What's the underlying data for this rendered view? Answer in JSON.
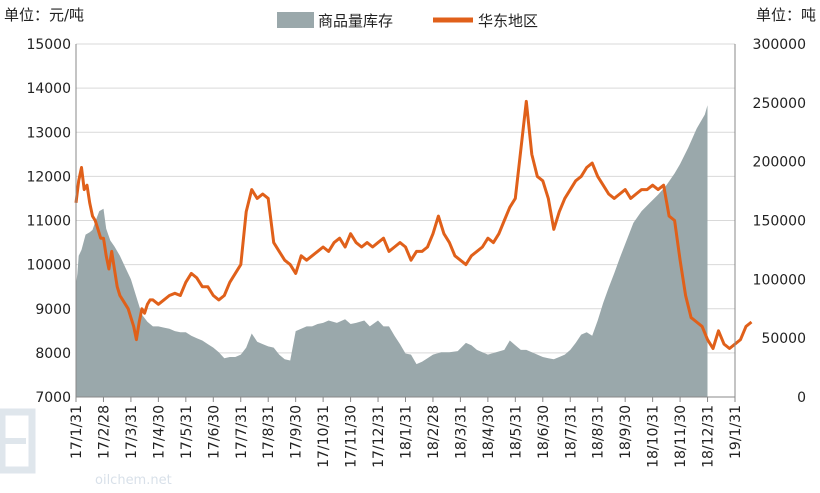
{
  "chart_data": {
    "type": "area+line",
    "left_unit": "单位：元/吨",
    "right_unit": "单位：吨",
    "legend": [
      {
        "name": "商品量库存",
        "color": "#9aa8ab",
        "kind": "area"
      },
      {
        "name": "华东地区",
        "color": "#e0601a",
        "kind": "line"
      }
    ],
    "y_left": {
      "min": 7000,
      "max": 15000,
      "ticks": [
        7000,
        8000,
        9000,
        10000,
        11000,
        12000,
        13000,
        14000,
        15000
      ]
    },
    "y_right": {
      "min": 0,
      "max": 300000,
      "ticks": [
        0,
        50000,
        100000,
        150000,
        200000,
        250000,
        300000
      ]
    },
    "x_ticks": [
      "17/1/31",
      "17/2/28",
      "17/3/31",
      "17/4/30",
      "17/5/31",
      "17/6/30",
      "17/7/31",
      "17/8/31",
      "17/9/30",
      "17/10/31",
      "17/11/30",
      "17/12/31",
      "18/1/31",
      "18/2/28",
      "18/3/31",
      "18/4/30",
      "18/5/31",
      "18/6/30",
      "18/7/31",
      "18/8/31",
      "18/9/30",
      "18/10/31",
      "18/11/30",
      "18/12/31",
      "19/1/31"
    ],
    "series": [
      {
        "name": "商品量库存",
        "axis": "right",
        "points": [
          [
            0,
            95000
          ],
          [
            0.05,
            105000
          ],
          [
            0.1,
            120000
          ],
          [
            0.2,
            125000
          ],
          [
            0.35,
            138000
          ],
          [
            0.5,
            140000
          ],
          [
            0.6,
            142000
          ],
          [
            0.75,
            152000
          ],
          [
            0.85,
            158000
          ],
          [
            1.0,
            160000
          ],
          [
            1.1,
            143000
          ],
          [
            1.25,
            133000
          ],
          [
            1.4,
            128000
          ],
          [
            1.6,
            120000
          ],
          [
            1.8,
            110000
          ],
          [
            2.0,
            100000
          ],
          [
            2.2,
            85000
          ],
          [
            2.4,
            70000
          ],
          [
            2.6,
            64000
          ],
          [
            2.8,
            60000
          ],
          [
            3.0,
            60000
          ],
          [
            3.2,
            59000
          ],
          [
            3.4,
            58000
          ],
          [
            3.6,
            56000
          ],
          [
            3.8,
            55000
          ],
          [
            4.0,
            55000
          ],
          [
            4.2,
            52000
          ],
          [
            4.4,
            50000
          ],
          [
            4.6,
            48000
          ],
          [
            4.8,
            45000
          ],
          [
            5.0,
            42000
          ],
          [
            5.2,
            38000
          ],
          [
            5.4,
            33000
          ],
          [
            5.6,
            34000
          ],
          [
            5.8,
            34000
          ],
          [
            6.0,
            36000
          ],
          [
            6.2,
            42000
          ],
          [
            6.4,
            54000
          ],
          [
            6.6,
            47000
          ],
          [
            6.8,
            45000
          ],
          [
            7.0,
            43000
          ],
          [
            7.2,
            42000
          ],
          [
            7.4,
            36000
          ],
          [
            7.6,
            32000
          ],
          [
            7.8,
            31000
          ],
          [
            8.0,
            56000
          ],
          [
            8.2,
            58000
          ],
          [
            8.4,
            60000
          ],
          [
            8.6,
            60000
          ],
          [
            8.8,
            62000
          ],
          [
            9.0,
            63000
          ],
          [
            9.2,
            65000
          ],
          [
            9.5,
            63000
          ],
          [
            9.8,
            66000
          ],
          [
            10.0,
            62000
          ],
          [
            10.2,
            63000
          ],
          [
            10.5,
            65000
          ],
          [
            10.7,
            60000
          ],
          [
            11.0,
            65000
          ],
          [
            11.2,
            60000
          ],
          [
            11.4,
            60000
          ],
          [
            11.6,
            52000
          ],
          [
            11.8,
            45000
          ],
          [
            12.0,
            37000
          ],
          [
            12.2,
            36000
          ],
          [
            12.4,
            28000
          ],
          [
            12.6,
            30000
          ],
          [
            12.8,
            33000
          ],
          [
            13.0,
            36000
          ],
          [
            13.3,
            38000
          ],
          [
            13.6,
            38000
          ],
          [
            13.9,
            39000
          ],
          [
            14.2,
            46000
          ],
          [
            14.4,
            44000
          ],
          [
            14.6,
            40000
          ],
          [
            14.8,
            38000
          ],
          [
            15.0,
            36000
          ],
          [
            15.3,
            38000
          ],
          [
            15.6,
            40000
          ],
          [
            15.8,
            48000
          ],
          [
            16.0,
            44000
          ],
          [
            16.2,
            40000
          ],
          [
            16.4,
            40000
          ],
          [
            16.6,
            38000
          ],
          [
            16.8,
            36000
          ],
          [
            17.0,
            34000
          ],
          [
            17.2,
            33000
          ],
          [
            17.4,
            32000
          ],
          [
            17.6,
            34000
          ],
          [
            17.8,
            36000
          ],
          [
            18.0,
            40000
          ],
          [
            18.2,
            46000
          ],
          [
            18.4,
            53000
          ],
          [
            18.6,
            55000
          ],
          [
            18.8,
            52000
          ],
          [
            19.0,
            65000
          ],
          [
            19.2,
            80000
          ],
          [
            19.4,
            93000
          ],
          [
            19.6,
            105000
          ],
          [
            19.8,
            118000
          ],
          [
            20.0,
            130000
          ],
          [
            20.3,
            148000
          ],
          [
            20.6,
            158000
          ],
          [
            20.9,
            165000
          ],
          [
            21.2,
            172000
          ],
          [
            21.5,
            180000
          ],
          [
            21.8,
            190000
          ],
          [
            22.0,
            198000
          ],
          [
            22.3,
            212000
          ],
          [
            22.6,
            228000
          ],
          [
            22.9,
            240000
          ],
          [
            23.0,
            248000
          ]
        ]
      },
      {
        "name": "华东地区",
        "axis": "left",
        "points": [
          [
            0,
            11400
          ],
          [
            0.1,
            11900
          ],
          [
            0.2,
            12200
          ],
          [
            0.3,
            11700
          ],
          [
            0.4,
            11800
          ],
          [
            0.5,
            11400
          ],
          [
            0.6,
            11100
          ],
          [
            0.7,
            11000
          ],
          [
            0.8,
            10800
          ],
          [
            0.9,
            10600
          ],
          [
            1.0,
            10600
          ],
          [
            1.1,
            10200
          ],
          [
            1.2,
            9900
          ],
          [
            1.3,
            10300
          ],
          [
            1.4,
            9900
          ],
          [
            1.5,
            9500
          ],
          [
            1.6,
            9300
          ],
          [
            1.7,
            9200
          ],
          [
            1.8,
            9100
          ],
          [
            1.9,
            9000
          ],
          [
            2.0,
            8800
          ],
          [
            2.1,
            8600
          ],
          [
            2.2,
            8300
          ],
          [
            2.3,
            8700
          ],
          [
            2.4,
            9000
          ],
          [
            2.5,
            8900
          ],
          [
            2.6,
            9100
          ],
          [
            2.7,
            9200
          ],
          [
            2.8,
            9200
          ],
          [
            3.0,
            9100
          ],
          [
            3.2,
            9200
          ],
          [
            3.4,
            9300
          ],
          [
            3.6,
            9350
          ],
          [
            3.8,
            9300
          ],
          [
            4.0,
            9600
          ],
          [
            4.2,
            9800
          ],
          [
            4.4,
            9700
          ],
          [
            4.6,
            9500
          ],
          [
            4.8,
            9500
          ],
          [
            5.0,
            9300
          ],
          [
            5.2,
            9200
          ],
          [
            5.4,
            9300
          ],
          [
            5.6,
            9600
          ],
          [
            5.8,
            9800
          ],
          [
            6.0,
            10000
          ],
          [
            6.2,
            11200
          ],
          [
            6.4,
            11700
          ],
          [
            6.6,
            11500
          ],
          [
            6.8,
            11600
          ],
          [
            7.0,
            11500
          ],
          [
            7.2,
            10500
          ],
          [
            7.4,
            10300
          ],
          [
            7.6,
            10100
          ],
          [
            7.8,
            10000
          ],
          [
            8.0,
            9800
          ],
          [
            8.2,
            10200
          ],
          [
            8.4,
            10100
          ],
          [
            8.6,
            10200
          ],
          [
            8.8,
            10300
          ],
          [
            9.0,
            10400
          ],
          [
            9.2,
            10300
          ],
          [
            9.4,
            10500
          ],
          [
            9.6,
            10600
          ],
          [
            9.8,
            10400
          ],
          [
            10.0,
            10700
          ],
          [
            10.2,
            10500
          ],
          [
            10.4,
            10400
          ],
          [
            10.6,
            10500
          ],
          [
            10.8,
            10400
          ],
          [
            11.0,
            10500
          ],
          [
            11.2,
            10600
          ],
          [
            11.4,
            10300
          ],
          [
            11.6,
            10400
          ],
          [
            11.8,
            10500
          ],
          [
            12.0,
            10400
          ],
          [
            12.2,
            10100
          ],
          [
            12.4,
            10300
          ],
          [
            12.6,
            10300
          ],
          [
            12.8,
            10400
          ],
          [
            13.0,
            10700
          ],
          [
            13.2,
            11100
          ],
          [
            13.4,
            10700
          ],
          [
            13.6,
            10500
          ],
          [
            13.8,
            10200
          ],
          [
            14.0,
            10100
          ],
          [
            14.2,
            10000
          ],
          [
            14.4,
            10200
          ],
          [
            14.6,
            10300
          ],
          [
            14.8,
            10400
          ],
          [
            15.0,
            10600
          ],
          [
            15.2,
            10500
          ],
          [
            15.4,
            10700
          ],
          [
            15.6,
            11000
          ],
          [
            15.8,
            11300
          ],
          [
            16.0,
            11500
          ],
          [
            16.2,
            12600
          ],
          [
            16.4,
            13700
          ],
          [
            16.6,
            12500
          ],
          [
            16.8,
            12000
          ],
          [
            17.0,
            11900
          ],
          [
            17.2,
            11500
          ],
          [
            17.4,
            10800
          ],
          [
            17.6,
            11200
          ],
          [
            17.8,
            11500
          ],
          [
            18.0,
            11700
          ],
          [
            18.2,
            11900
          ],
          [
            18.4,
            12000
          ],
          [
            18.6,
            12200
          ],
          [
            18.8,
            12300
          ],
          [
            19.0,
            12000
          ],
          [
            19.2,
            11800
          ],
          [
            19.4,
            11600
          ],
          [
            19.6,
            11500
          ],
          [
            19.8,
            11600
          ],
          [
            20.0,
            11700
          ],
          [
            20.2,
            11500
          ],
          [
            20.4,
            11600
          ],
          [
            20.6,
            11700
          ],
          [
            20.8,
            11700
          ],
          [
            21.0,
            11800
          ],
          [
            21.2,
            11700
          ],
          [
            21.4,
            11800
          ],
          [
            21.6,
            11100
          ],
          [
            21.8,
            11000
          ],
          [
            22.0,
            10100
          ],
          [
            22.2,
            9300
          ],
          [
            22.4,
            8800
          ],
          [
            22.6,
            8700
          ],
          [
            22.8,
            8600
          ],
          [
            23.0,
            8300
          ],
          [
            23.2,
            8100
          ],
          [
            23.4,
            8500
          ],
          [
            23.6,
            8200
          ],
          [
            23.8,
            8100
          ],
          [
            24.0,
            8200
          ],
          [
            24.2,
            8300
          ],
          [
            24.4,
            8600
          ],
          [
            24.6,
            8700
          ]
        ]
      }
    ],
    "watermark": "oilchem.net"
  }
}
